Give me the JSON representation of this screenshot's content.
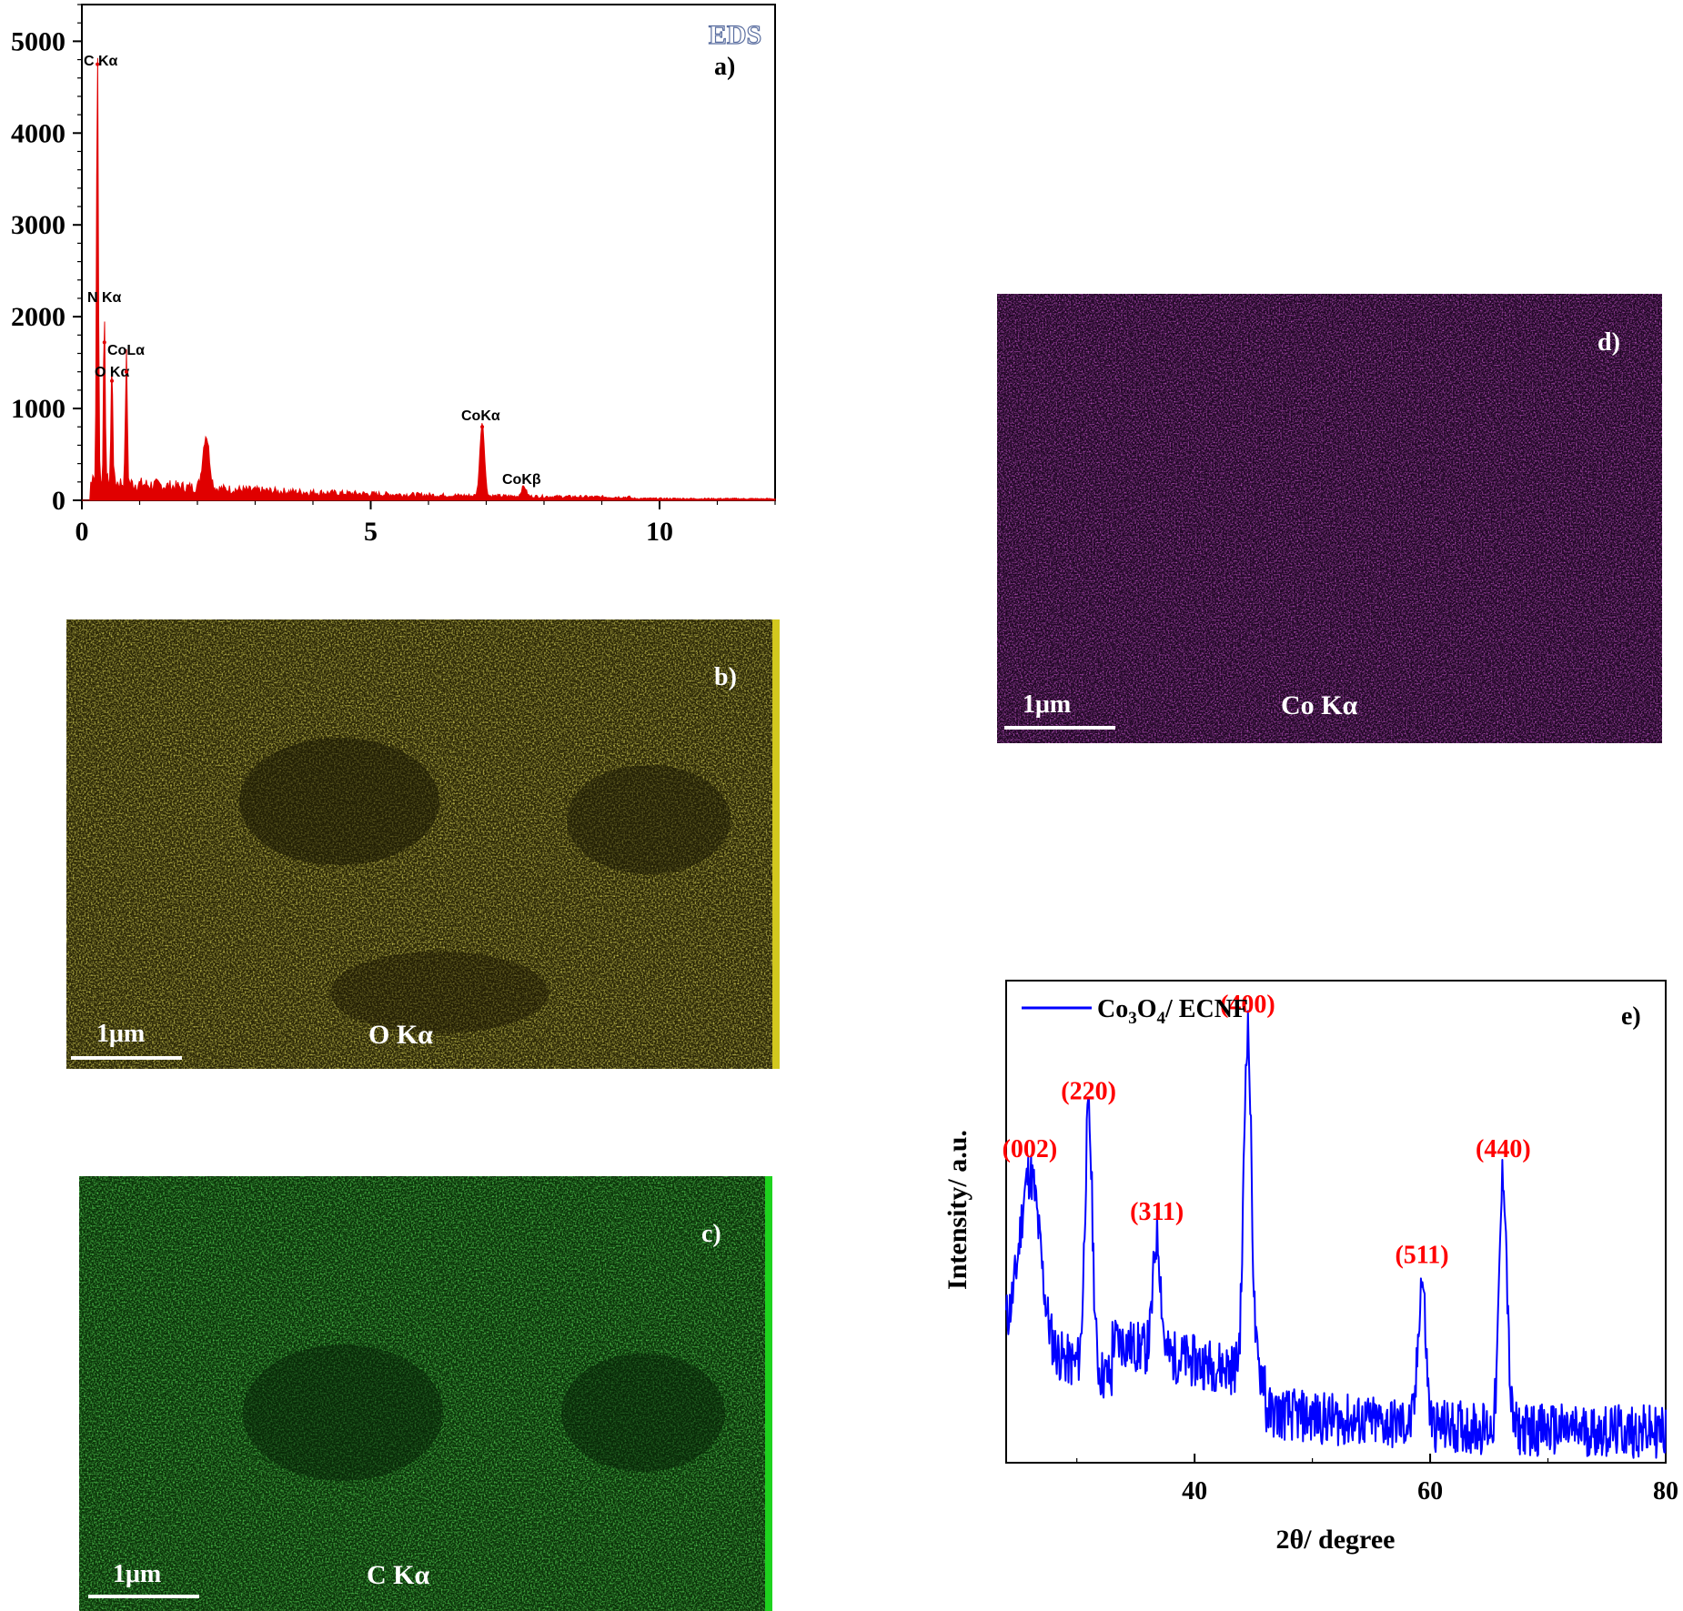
{
  "chart_data": [
    {
      "panel": "a)",
      "type": "line",
      "badge": "EDS",
      "xlim": [
        0,
        12
      ],
      "ylim": [
        0,
        5400
      ],
      "x_ticks": [
        "0",
        "5",
        "10"
      ],
      "y_ticks": [
        "0",
        "1000",
        "2000",
        "3000",
        "4000",
        "5000"
      ],
      "color": "#e00000",
      "peaks": [
        {
          "label": "C Kα",
          "x": 0.27,
          "y": 4750
        },
        {
          "label": "N Kα",
          "x": 0.39,
          "y": 1720
        },
        {
          "label": "O Kα",
          "x": 0.52,
          "y": 1300
        },
        {
          "label": "CoLα",
          "x": 0.77,
          "y": 1400
        },
        {
          "label": "",
          "x": 2.15,
          "y": 580
        },
        {
          "label": "CoKα",
          "x": 6.93,
          "y": 800
        },
        {
          "label": "CoKβ",
          "x": 7.65,
          "y": 110
        }
      ]
    },
    {
      "panel": "e)",
      "type": "line",
      "xlabel": "2θ/ degree",
      "ylabel": "Intensity/ a.u.",
      "legend": "Co3O4/ ECNF",
      "xlim": [
        24,
        80
      ],
      "x_ticks": [
        "40",
        "60",
        "80"
      ],
      "color": "#0000ff",
      "peaks": [
        {
          "label": "(002)",
          "x": 26.0,
          "y": 0.6
        },
        {
          "label": "(220)",
          "x": 31.0,
          "y": 0.72
        },
        {
          "label": "(311)",
          "x": 36.8,
          "y": 0.47
        },
        {
          "label": "(400)",
          "x": 44.5,
          "y": 0.9
        },
        {
          "label": "(511)",
          "x": 59.3,
          "y": 0.38
        },
        {
          "label": "(440)",
          "x": 66.2,
          "y": 0.6
        }
      ]
    }
  ],
  "maps": {
    "b": {
      "letter": "b)",
      "element": "O Kα",
      "scale": "1μm",
      "color": "#d2c81e"
    },
    "c": {
      "letter": "c)",
      "element": "C Kα",
      "scale": "1μm",
      "color": "#1ed21e"
    },
    "d": {
      "letter": "d)",
      "element": "Co Kα",
      "scale": "1μm",
      "color": "#b41ec3"
    }
  }
}
